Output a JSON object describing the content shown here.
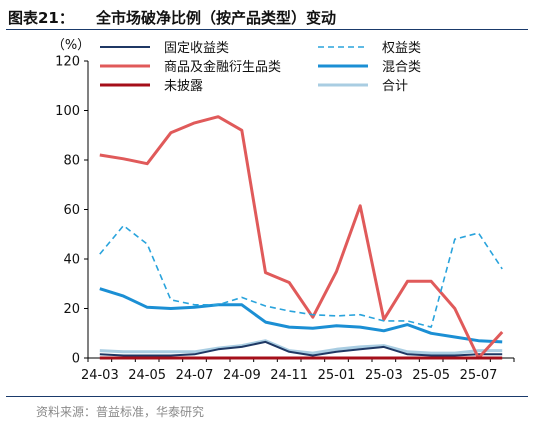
{
  "figure": {
    "label": "图表21：",
    "title": "全市场破净比例（按产品类型）变动",
    "source": "资料来源：普益标准，华泰研究"
  },
  "colors": {
    "fixed_income": "#1f3864",
    "equity": "#29a3dc",
    "commodity": "#e05a5a",
    "mixed": "#1b8fd4",
    "undisclosed": "#a50f1a",
    "total": "#a9cde2",
    "axis": "#000000",
    "text": "#111111"
  },
  "chart_data": {
    "type": "line",
    "unit_label": "（%）",
    "ylim": [
      0,
      120
    ],
    "yticks": [
      0,
      20,
      40,
      60,
      80,
      100,
      120
    ],
    "x": [
      "24-03",
      "24-04",
      "24-05",
      "24-06",
      "24-07",
      "24-08",
      "24-09",
      "24-10",
      "24-11",
      "24-12",
      "25-01",
      "25-02",
      "25-03",
      "25-04",
      "25-05",
      "25-06",
      "25-07",
      "25-08"
    ],
    "xtick_labels": [
      "24-03",
      "24-05",
      "24-07",
      "24-09",
      "24-11",
      "25-01",
      "25-03",
      "25-05",
      "25-07"
    ],
    "grid": false,
    "legend_position": "top",
    "series": [
      {
        "key": "fixed_income",
        "name": "固定收益类",
        "dash": "solid",
        "width": 2,
        "values": [
          1.5,
          1.0,
          1.0,
          1.0,
          1.5,
          3.5,
          4.5,
          6.5,
          2.5,
          1.0,
          2.5,
          3.5,
          4.5,
          1.5,
          1.0,
          1.0,
          1.5,
          1.5
        ]
      },
      {
        "key": "equity",
        "name": "权益类",
        "dash": "dashed",
        "width": 1.6,
        "values": [
          42,
          53.5,
          46,
          23.5,
          21.5,
          21.5,
          24.5,
          21,
          19,
          17.5,
          17,
          17.5,
          15,
          15,
          12.5,
          48,
          50.5,
          36
        ]
      },
      {
        "key": "commodity",
        "name": "商品及金融衍生品类",
        "dash": "solid",
        "width": 3,
        "values": [
          82,
          80.5,
          78.5,
          91,
          95,
          97.5,
          92,
          34.5,
          30.5,
          16.5,
          35,
          61.5,
          15.5,
          31,
          31,
          20,
          0,
          10.5
        ]
      },
      {
        "key": "mixed",
        "name": "混合类",
        "dash": "solid",
        "width": 3,
        "values": [
          28,
          25,
          20.5,
          20,
          20.5,
          21.5,
          21.5,
          14.5,
          12.5,
          12,
          13,
          12.5,
          11,
          13.5,
          10,
          8.5,
          7,
          6.5
        ]
      },
      {
        "key": "undisclosed",
        "name": "未披露",
        "dash": "solid",
        "width": 3,
        "values": [
          0,
          0,
          0,
          0,
          0,
          0,
          0,
          0,
          0,
          0,
          0,
          0,
          0,
          0,
          0,
          0,
          0,
          0
        ]
      },
      {
        "key": "total",
        "name": "合计",
        "dash": "solid",
        "width": 3,
        "values": [
          3,
          2.5,
          2.5,
          2.5,
          2.5,
          4,
          5,
          7,
          3,
          2,
          3.5,
          4.5,
          5,
          2.5,
          2,
          2,
          3,
          3
        ]
      }
    ]
  }
}
